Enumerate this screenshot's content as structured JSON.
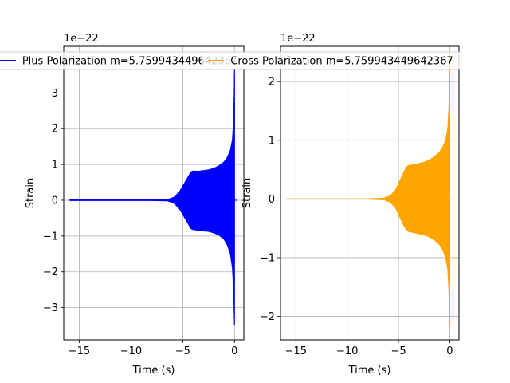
{
  "chart_data": [
    {
      "type": "line",
      "offset_label": "1e−22",
      "xlabel": "Time (s)",
      "ylabel": "Strain",
      "xlim": [
        -16.5,
        0.9
      ],
      "ylim": [
        -3.9,
        4.3
      ],
      "xticks": [
        -15,
        -10,
        -5,
        0
      ],
      "xtick_labels": [
        "−15",
        "−10",
        "−5",
        "0"
      ],
      "yticks": [
        -3,
        -2,
        -1,
        0,
        1,
        2,
        3
      ],
      "ytick_labels": [
        "−3",
        "−2",
        "−1",
        "0",
        "1",
        "2",
        "3"
      ],
      "grid": true,
      "legend_position": "top-center",
      "series": [
        {
          "name": "Plus Polarization m=5.759943449642367",
          "color": "#0000ff",
          "envelope": {
            "t": [
              -15.9,
              -12,
              -8,
              -6.4,
              -5.8,
              -5.3,
              -4.9,
              -4.5,
              -4.2,
              -4.0,
              -3.5,
              -3.0,
              -2.5,
              -2.0,
              -1.5,
              -1.0,
              -0.7,
              -0.4,
              -0.2,
              -0.1,
              -0.03,
              0.0
            ],
            "upper": [
              0.03,
              0.02,
              0.02,
              0.03,
              0.1,
              0.25,
              0.45,
              0.65,
              0.8,
              0.83,
              0.82,
              0.84,
              0.86,
              0.9,
              0.97,
              1.08,
              1.2,
              1.4,
              1.7,
              2.2,
              3.0,
              3.9
            ],
            "lower": [
              -0.02,
              -0.02,
              -0.02,
              -0.03,
              -0.1,
              -0.25,
              -0.45,
              -0.65,
              -0.8,
              -0.83,
              -0.85,
              -0.87,
              -0.88,
              -0.92,
              -0.98,
              -1.1,
              -1.25,
              -1.5,
              -1.9,
              -2.5,
              -3.2,
              -3.55
            ]
          }
        }
      ]
    },
    {
      "type": "line",
      "offset_label": "1e−22",
      "xlabel": "Time (s)",
      "ylabel": "Strain",
      "xlim": [
        -16.5,
        0.9
      ],
      "ylim": [
        -2.4,
        2.6
      ],
      "xticks": [
        -15,
        -10,
        -5,
        0
      ],
      "xtick_labels": [
        "−15",
        "−10",
        "−5",
        "0"
      ],
      "yticks": [
        -2,
        -1,
        0,
        1,
        2
      ],
      "ytick_labels": [
        "−2",
        "−1",
        "0",
        "1",
        "2"
      ],
      "grid": true,
      "legend_position": "top-center",
      "series": [
        {
          "name": "Cross Polarization m=5.759943449642367",
          "color": "#ffa500",
          "envelope": {
            "t": [
              -15.9,
              -12,
              -8,
              -6.4,
              -5.8,
              -5.3,
              -4.9,
              -4.5,
              -4.2,
              -4.0,
              -3.5,
              -3.0,
              -2.5,
              -2.0,
              -1.5,
              -1.0,
              -0.7,
              -0.4,
              -0.2,
              -0.1,
              -0.03,
              0.0
            ],
            "upper": [
              0.01,
              0.01,
              0.01,
              0.02,
              0.06,
              0.15,
              0.3,
              0.45,
              0.55,
              0.58,
              0.59,
              0.61,
              0.63,
              0.67,
              0.72,
              0.8,
              0.88,
              1.0,
              1.2,
              1.5,
              2.0,
              2.5
            ],
            "lower": [
              -0.01,
              -0.01,
              -0.01,
              -0.02,
              -0.06,
              -0.15,
              -0.3,
              -0.45,
              -0.53,
              -0.56,
              -0.58,
              -0.6,
              -0.62,
              -0.65,
              -0.7,
              -0.78,
              -0.86,
              -1.0,
              -1.2,
              -1.5,
              -1.9,
              -2.2
            ]
          }
        }
      ]
    }
  ]
}
